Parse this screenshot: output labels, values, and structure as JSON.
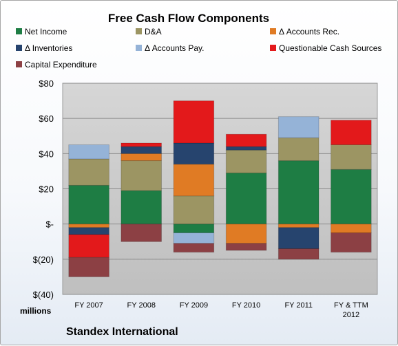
{
  "chart_data": {
    "type": "bar",
    "stacked": true,
    "title": "Free Cash Flow Components",
    "unit_label": "millions",
    "company": "Standex International",
    "categories": [
      "FY 2007",
      "FY 2008",
      "FY 2009",
      "FY 2010",
      "FY 2011",
      "FY & TTM 2012"
    ],
    "ylim": [
      -40,
      80
    ],
    "y_ticks": [
      {
        "value": 80,
        "label": "$80"
      },
      {
        "value": 60,
        "label": "$60"
      },
      {
        "value": 40,
        "label": "$40"
      },
      {
        "value": 20,
        "label": "$20"
      },
      {
        "value": 0,
        "label": "$-"
      },
      {
        "value": -20,
        "label": "$(20)"
      },
      {
        "value": -40,
        "label": "$(40)"
      }
    ],
    "grid": true,
    "legend_position": "top",
    "series": [
      {
        "name": "Net Income",
        "color": "#1e7d44",
        "values": [
          22,
          19,
          -5,
          29,
          36,
          31
        ]
      },
      {
        "name": "D&A",
        "color": "#9c9563",
        "values": [
          15,
          17,
          16,
          13,
          13,
          14
        ]
      },
      {
        "name": "Δ Accounts Rec.",
        "color": "#e07b24",
        "values": [
          -2,
          4,
          18,
          -11,
          -2,
          -5
        ]
      },
      {
        "name": "Δ Inventories",
        "color": "#26446e",
        "values": [
          -4,
          4,
          12,
          2,
          -12,
          0
        ]
      },
      {
        "name": "Δ Accounts Pay.",
        "color": "#95b3d7",
        "values": [
          8,
          0,
          -6,
          0,
          12,
          0
        ]
      },
      {
        "name": "Questionable Cash Sources",
        "color": "#e3191b",
        "values": [
          -13,
          2,
          24,
          7,
          0,
          14
        ]
      },
      {
        "name": "Capital Expenditure",
        "color": "#8c4044",
        "values": [
          -11,
          -10,
          -5,
          -4,
          -6,
          -11
        ]
      }
    ]
  }
}
